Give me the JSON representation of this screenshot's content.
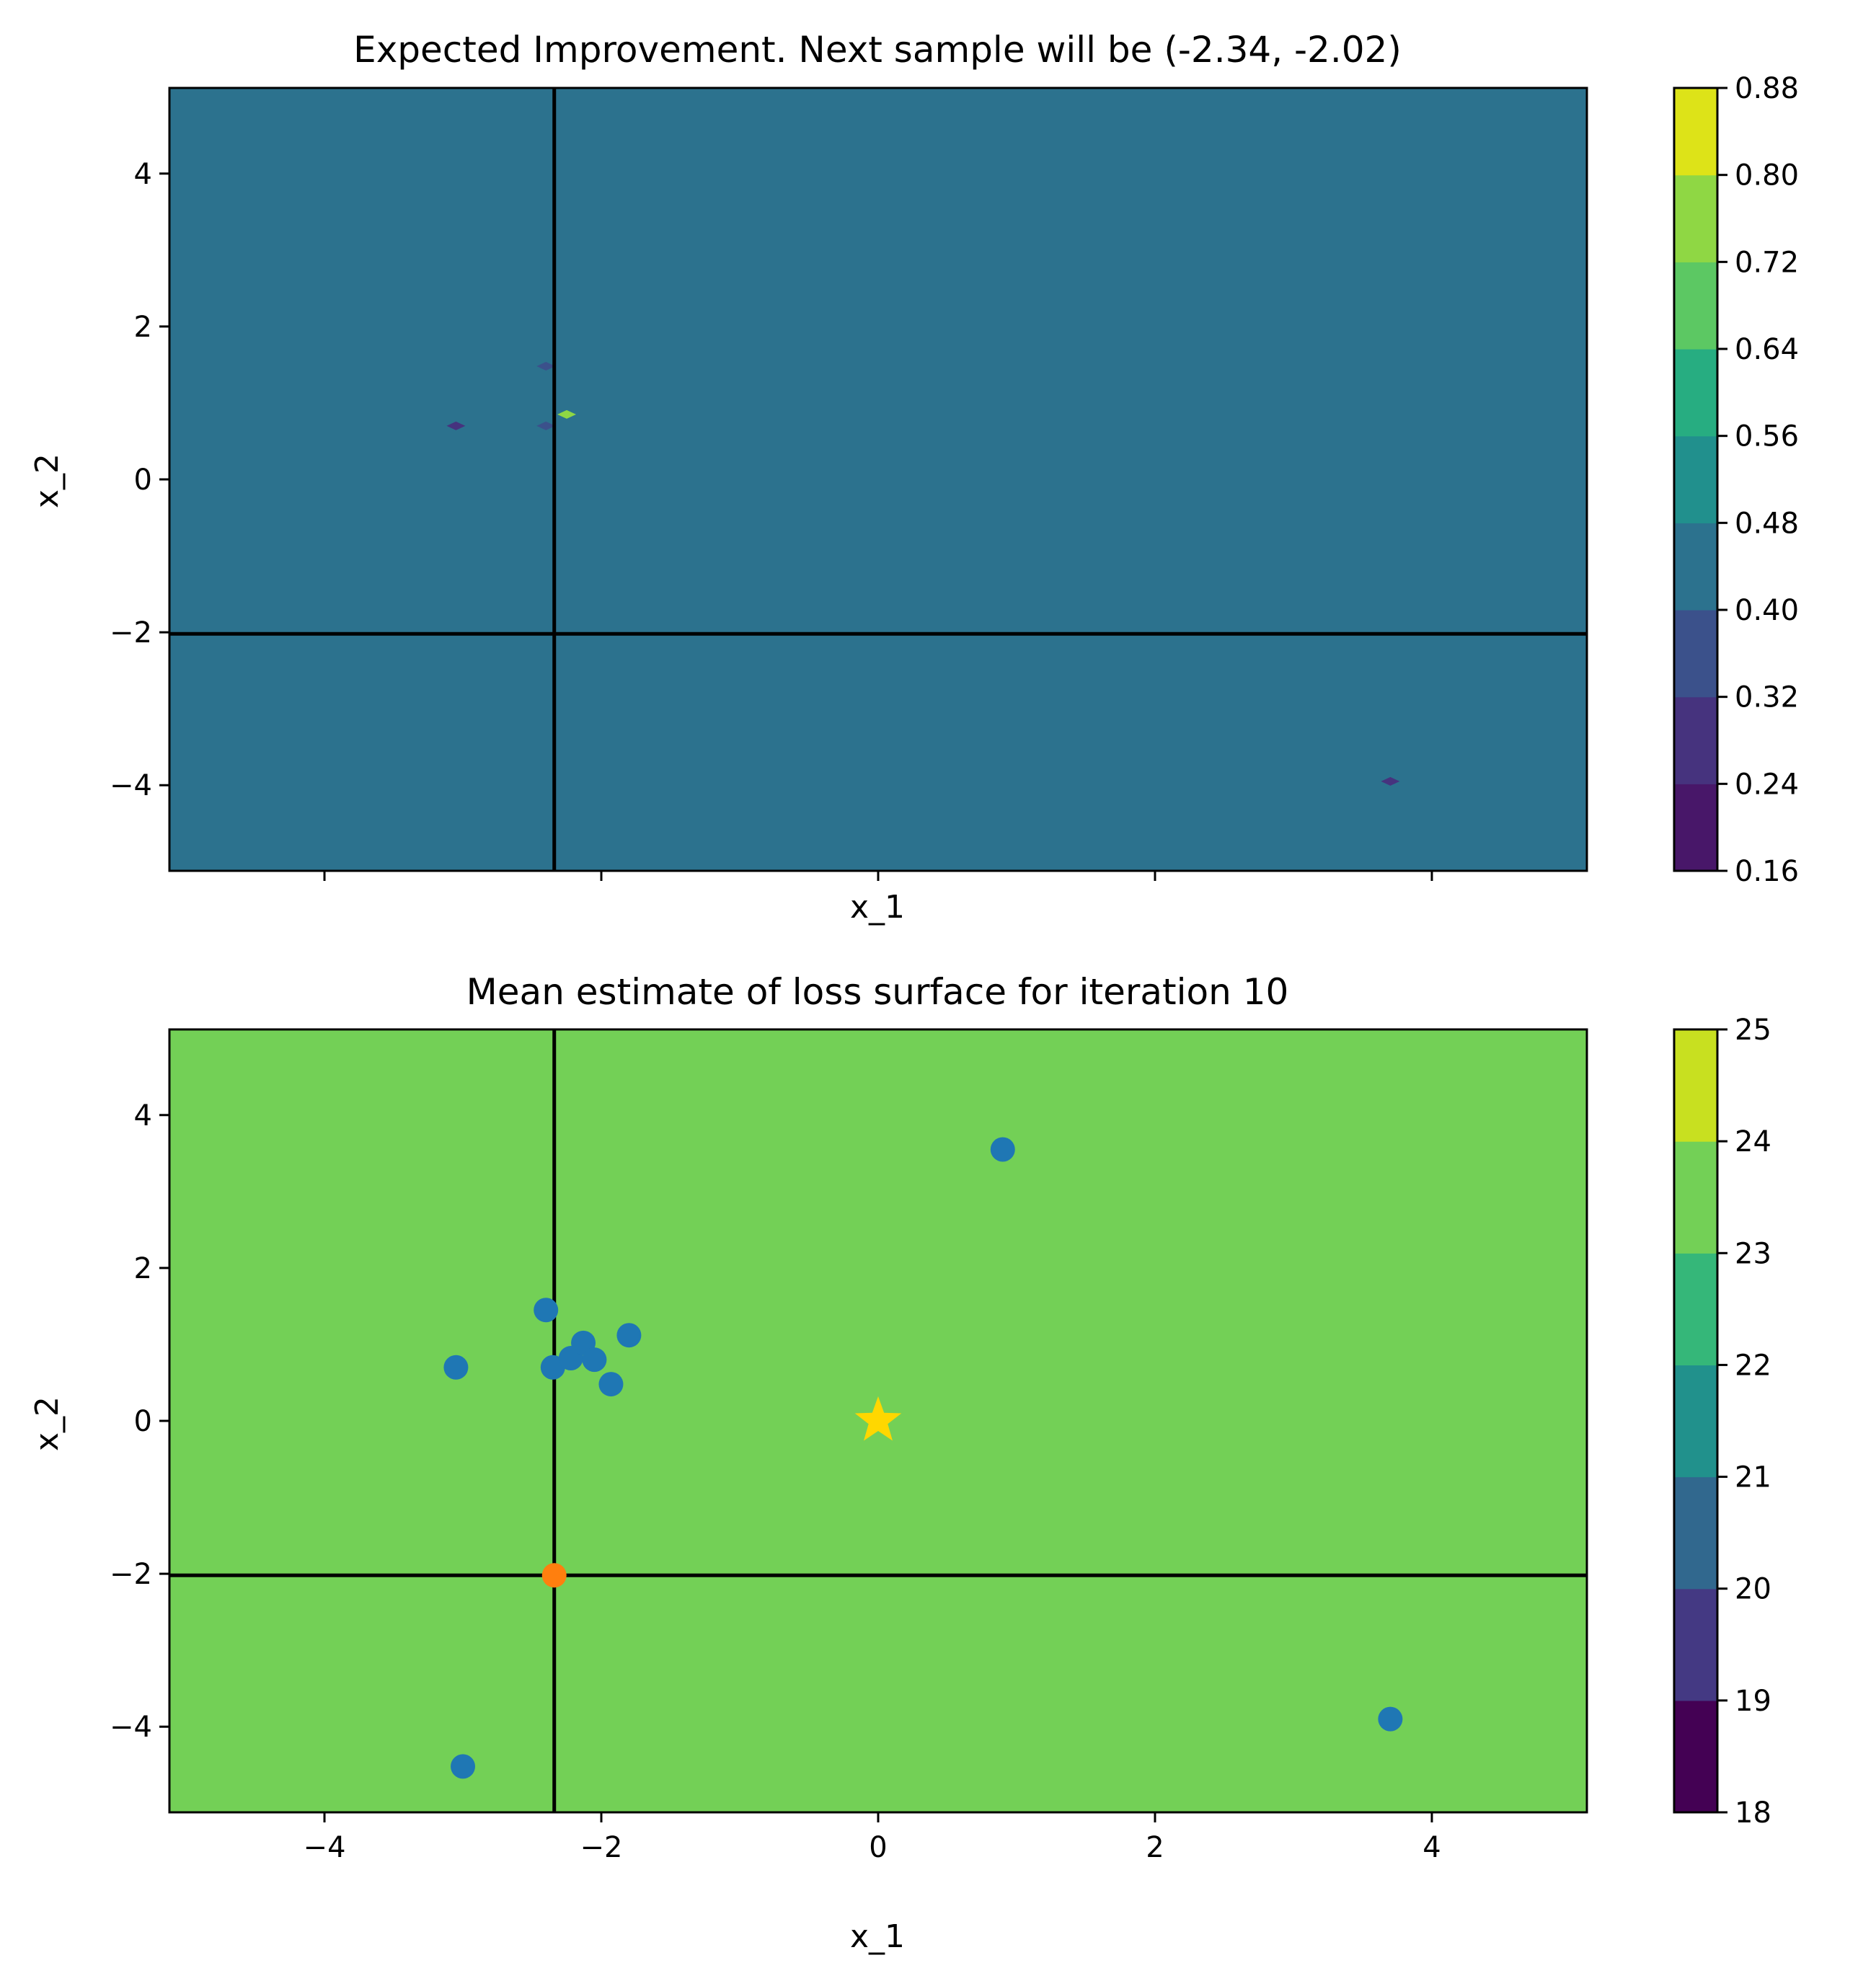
{
  "chart_data": [
    {
      "type": "heatmap",
      "title": "Expected Improvement. Next sample will be (-2.34, -2.02)",
      "xlabel": "x_1",
      "ylabel": "x_2",
      "xlim": [
        -5.12,
        5.12
      ],
      "ylim": [
        -5.12,
        5.12
      ],
      "xticks": [
        -4,
        -2,
        0,
        2,
        4
      ],
      "xtick_labels": [
        "",
        "",
        "",
        "",
        ""
      ],
      "yticks": [
        4,
        2,
        0,
        -2,
        -4
      ],
      "ytick_labels": [
        "4",
        "2",
        "0",
        "−2",
        "−4"
      ],
      "background_level_range": [
        0.4,
        0.48
      ],
      "background_color": "#2c728e",
      "crosshair": {
        "x": -2.34,
        "y": -2.02,
        "color": "#000000"
      },
      "features": [
        {
          "x": -3.05,
          "y": 0.7,
          "color": "#46337e"
        },
        {
          "x": -2.4,
          "y": 1.48,
          "color": "#3b518b"
        },
        {
          "x": -2.4,
          "y": 0.7,
          "color": "#3b518b"
        },
        {
          "x": -2.25,
          "y": 0.85,
          "color": "#8fd744"
        },
        {
          "x": 3.7,
          "y": -3.95,
          "color": "#46337e"
        }
      ],
      "colorbar": {
        "levels": [
          "0.16",
          "0.24",
          "0.32",
          "0.40",
          "0.48",
          "0.56",
          "0.64",
          "0.72",
          "0.80",
          "0.88"
        ],
        "colors": [
          "#481769",
          "#46337e",
          "#3b518b",
          "#2c728e",
          "#21908d",
          "#27ad81",
          "#5cc863",
          "#8fd744",
          "#dde318"
        ]
      }
    },
    {
      "type": "heatmap",
      "title": "Mean estimate of loss surface for iteration 10",
      "xlabel": "x_1",
      "ylabel": "x_2",
      "xlim": [
        -5.12,
        5.12
      ],
      "ylim": [
        -5.12,
        5.12
      ],
      "xticks": [
        -4,
        -2,
        0,
        2,
        4
      ],
      "xtick_labels": [
        "−4",
        "−2",
        "0",
        "2",
        "4"
      ],
      "yticks": [
        4,
        2,
        0,
        -2,
        -4
      ],
      "ytick_labels": [
        "4",
        "2",
        "0",
        "−2",
        "−4"
      ],
      "background_level_range": [
        23,
        24
      ],
      "background_color": "#73d056",
      "crosshair": {
        "x": -2.34,
        "y": -2.02,
        "color": "#000000"
      },
      "samples": {
        "color": "#1f77b4",
        "x": [
          0.9,
          -2.4,
          -3.05,
          -2.35,
          -2.22,
          -2.13,
          -2.05,
          -1.93,
          -1.8,
          -3.0,
          3.7
        ],
        "y": [
          3.55,
          1.45,
          0.7,
          0.7,
          0.82,
          1.02,
          0.8,
          0.48,
          1.12,
          -4.52,
          -3.9
        ]
      },
      "next_sample": {
        "x": -2.34,
        "y": -2.02,
        "color": "#ff7f0e"
      },
      "optimum": {
        "x": 0,
        "y": 0,
        "color": "#ffd700",
        "marker": "star"
      },
      "colorbar": {
        "levels": [
          "18",
          "19",
          "20",
          "21",
          "22",
          "23",
          "24",
          "25"
        ],
        "colors": [
          "#440154",
          "#443983",
          "#31688e",
          "#21918c",
          "#35b779",
          "#73d056",
          "#c8e020"
        ]
      }
    }
  ]
}
